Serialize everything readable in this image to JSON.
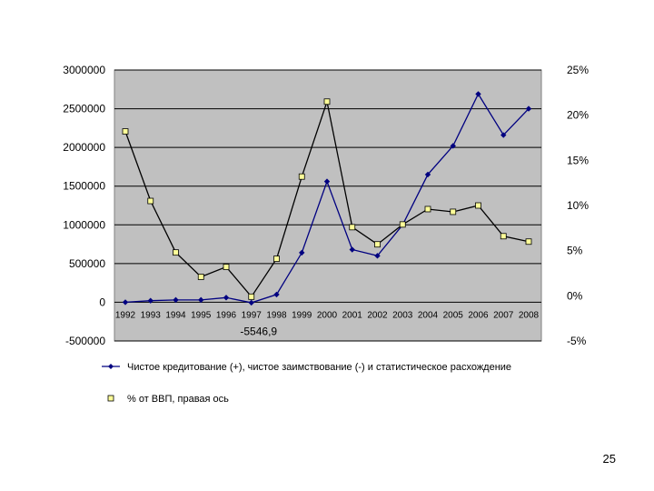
{
  "page": {
    "number": "25"
  },
  "chart_data": {
    "type": "line",
    "title": "",
    "background_color": "#c0c0c0",
    "grid": true,
    "legend_position": "bottom",
    "x": [
      "1992",
      "1993",
      "1994",
      "1995",
      "1996",
      "1997",
      "1998",
      "1999",
      "2000",
      "2001",
      "2002",
      "2003",
      "2004",
      "2005",
      "2006",
      "2007",
      "2008"
    ],
    "y_left": {
      "ylim": [
        -500000,
        3000000
      ],
      "ticks": [
        3000000,
        2500000,
        2000000,
        1500000,
        1000000,
        500000,
        0,
        -500000
      ],
      "tick_labels": [
        "3000000",
        "2500000",
        "2000000",
        "1500000",
        "1000000",
        "500000",
        "0",
        "-500000"
      ]
    },
    "y_right": {
      "ylim": [
        -5,
        25
      ],
      "ticks": [
        25,
        20,
        15,
        10,
        5,
        0,
        -5
      ],
      "tick_labels": [
        "25%",
        "20%",
        "15%",
        "10%",
        "5%",
        "0%",
        "-5%"
      ]
    },
    "series": [
      {
        "name": "Чистое кредитование (+), чистое заимствование (-) и статистическое расхождение",
        "axis": "left",
        "color": "#000080",
        "marker": "diamond",
        "values": [
          0,
          20000,
          30000,
          30000,
          60000,
          -5546.9,
          100000,
          640000,
          1560000,
          680000,
          600000,
          1000000,
          1650000,
          2020000,
          2690000,
          2160000,
          2500000
        ]
      },
      {
        "name": "% от ВВП, правая ось",
        "axis": "right",
        "color": "#000000",
        "marker_fill": "#ffff99",
        "marker": "square",
        "values": [
          18.2,
          10.5,
          4.8,
          2.1,
          3.2,
          -0.1,
          4.1,
          13.2,
          21.5,
          7.6,
          5.7,
          7.9,
          9.6,
          9.3,
          10.0,
          6.6,
          6.0
        ]
      }
    ],
    "annotations": [
      {
        "text": "-5546,9",
        "x": "1997",
        "series": 0
      }
    ]
  }
}
